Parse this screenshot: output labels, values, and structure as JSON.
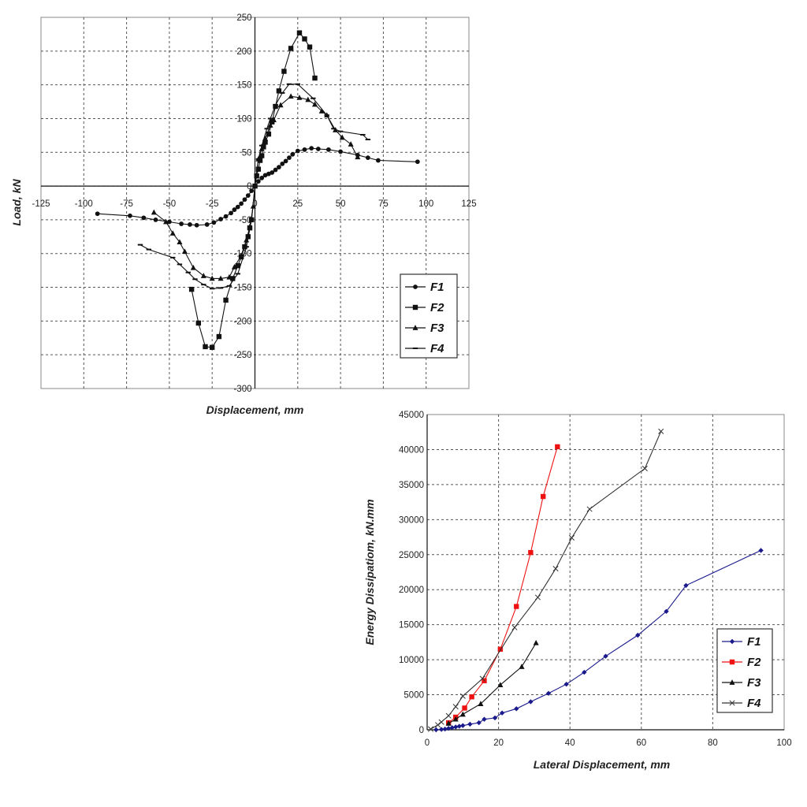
{
  "chart_data": [
    {
      "type": "scatter",
      "title": "",
      "xlabel": "Displacement, mm",
      "ylabel": "Load, kN",
      "xlim": [
        -125,
        125
      ],
      "ylim": [
        -300,
        250
      ],
      "xticks": [
        -125,
        -100,
        -75,
        -50,
        -25,
        0,
        25,
        50,
        75,
        100,
        125
      ],
      "yticks": [
        -300,
        -250,
        -200,
        -150,
        -100,
        -50,
        0,
        50,
        100,
        150,
        200,
        250
      ],
      "grid": true,
      "legend_position": "bottom-right",
      "series": [
        {
          "name": "F1",
          "marker": "circle",
          "color": "#111111",
          "x": [
            -92,
            -73,
            -65,
            -58,
            -50,
            -43,
            -38,
            -34,
            -28,
            -24,
            -20,
            -17,
            -14,
            -12,
            -10,
            -8,
            -6,
            -4,
            -2,
            0,
            2,
            4,
            6,
            8,
            10,
            12,
            14,
            16,
            18,
            20,
            22,
            25,
            29,
            33,
            37,
            43,
            50,
            60,
            66,
            72,
            95
          ],
          "y": [
            -41,
            -44,
            -47,
            -50,
            -53,
            -56,
            -57,
            -58,
            -57,
            -54,
            -49,
            -45,
            -40,
            -35,
            -31,
            -26,
            -20,
            -14,
            -7,
            0,
            7,
            12,
            16,
            18,
            20,
            24,
            28,
            33,
            37,
            42,
            47,
            52,
            54,
            56,
            55,
            54,
            51,
            46,
            42,
            38,
            36
          ]
        },
        {
          "name": "F2",
          "marker": "square",
          "color": "#111111",
          "x": [
            -37,
            -33,
            -29,
            -25,
            -21,
            -17,
            -13,
            -10,
            -8,
            -6,
            -4,
            -3,
            -2,
            0,
            1,
            2,
            3,
            4,
            5,
            6,
            8,
            10,
            12,
            14,
            17,
            21,
            26,
            29,
            32,
            35
          ],
          "y": [
            -153,
            -203,
            -238,
            -239,
            -223,
            -169,
            -137,
            -118,
            -105,
            -90,
            -75,
            -62,
            -50,
            0,
            15,
            25,
            38,
            45,
            58,
            65,
            77,
            95,
            118,
            141,
            170,
            204,
            227,
            218,
            206,
            160
          ]
        },
        {
          "name": "F3",
          "marker": "triangle",
          "color": "#111111",
          "x": [
            -59,
            -52,
            -48,
            -44,
            -41,
            -36,
            -30,
            -25,
            -20,
            -15,
            -12,
            -8,
            -5,
            -3,
            -1,
            0,
            2,
            4,
            6,
            9,
            11,
            15,
            21,
            26,
            31,
            35,
            39,
            42,
            47,
            51,
            56,
            60
          ],
          "y": [
            -39,
            -53,
            -70,
            -83,
            -97,
            -121,
            -133,
            -137,
            -137,
            -135,
            -120,
            -103,
            -80,
            -60,
            -30,
            0,
            40,
            55,
            70,
            90,
            98,
            120,
            133,
            131,
            128,
            121,
            111,
            105,
            83,
            72,
            62,
            43
          ]
        },
        {
          "name": "F4",
          "marker": "dash",
          "color": "#111111",
          "x": [
            -67,
            -62,
            -48,
            -44,
            -39,
            -35,
            -30,
            -25,
            -20,
            -15,
            -10,
            -5,
            -2,
            0,
            2,
            4,
            7,
            9,
            12,
            16,
            20,
            25,
            34,
            42,
            46,
            50,
            63,
            66
          ],
          "y": [
            -87,
            -94,
            -106,
            -116,
            -128,
            -138,
            -146,
            -152,
            -151,
            -148,
            -130,
            -90,
            -50,
            0,
            40,
            60,
            85,
            100,
            120,
            138,
            151,
            151,
            130,
            105,
            85,
            81,
            76,
            69
          ]
        }
      ]
    },
    {
      "type": "line",
      "title": "",
      "xlabel": "Lateral Displacement, mm",
      "ylabel": "Energy Dissipatiom, kN.mm",
      "xlim": [
        0,
        100
      ],
      "ylim": [
        0,
        45000
      ],
      "xticks": [
        0,
        20,
        40,
        60,
        80,
        100
      ],
      "yticks": [
        0,
        5000,
        10000,
        15000,
        20000,
        25000,
        30000,
        35000,
        40000,
        45000
      ],
      "grid": true,
      "legend_position": "bottom-right",
      "series": [
        {
          "name": "F1",
          "marker": "diamond",
          "color": "#1a1a8c",
          "x": [
            2.5,
            4,
            5,
            6,
            7,
            8,
            9,
            10,
            12,
            14.5,
            16,
            19,
            21,
            25,
            29,
            34,
            39,
            44,
            50,
            59,
            67,
            72.5,
            93.5
          ],
          "y": [
            0,
            50,
            100,
            200,
            300,
            400,
            500,
            600,
            800,
            1000,
            1500,
            1700,
            2400,
            3000,
            4000,
            5200,
            6500,
            8200,
            10500,
            13500,
            16900,
            20600,
            25600
          ]
        },
        {
          "name": "F2",
          "marker": "square",
          "color": "#ee1111",
          "x": [
            6,
            8,
            10.5,
            12.5,
            16,
            20.5,
            25,
            29,
            32.5,
            36.5
          ],
          "y": [
            1000,
            1800,
            3100,
            4700,
            7000,
            11500,
            17600,
            25300,
            33300,
            40400
          ]
        },
        {
          "name": "F3",
          "marker": "triangle",
          "color": "#111111",
          "x": [
            6,
            8,
            10,
            15,
            20.5,
            26.5,
            30.5
          ],
          "y": [
            900,
            1500,
            2200,
            3700,
            6400,
            9000,
            12400
          ]
        },
        {
          "name": "F4",
          "marker": "x",
          "color": "#333333",
          "x": [
            1,
            3,
            4,
            6,
            8,
            10,
            15.5,
            24.5,
            31,
            36,
            40.5,
            45.5,
            61,
            65.5
          ],
          "y": [
            100,
            700,
            1100,
            2000,
            3300,
            4800,
            7300,
            14600,
            18900,
            23000,
            27400,
            31500,
            37300,
            42600
          ]
        }
      ]
    }
  ]
}
